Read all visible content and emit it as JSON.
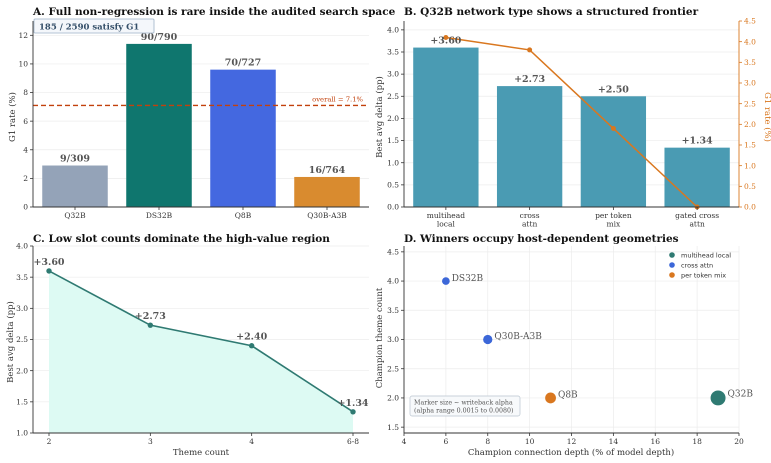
{
  "chart_data": [
    {
      "type": "bar",
      "title": "A. Full non-regression is rare inside the audited search space",
      "ylabel": "G1 rate (%)",
      "categories": [
        "Q32B",
        "DS32B",
        "Q8B",
        "Q30B-A3B"
      ],
      "values": [
        2.9,
        11.4,
        9.6,
        2.1
      ],
      "bar_labels": [
        "9/309",
        "90/790",
        "70/727",
        "16/764"
      ],
      "colors": [
        "#94a3b8",
        "#0f766e",
        "#4468e0",
        "#d98b2f"
      ],
      "ylim": [
        0,
        13
      ],
      "yticks": [
        "0",
        "2",
        "4",
        "6",
        "8",
        "10",
        "12"
      ],
      "reference_line": {
        "value": 7.1,
        "label": "overall = 7.1%",
        "color": "#c2410c"
      },
      "badge": "185 / 2590 satisfy G1"
    },
    {
      "type": "bar",
      "title": "B. Q32B network type shows a structured frontier",
      "ylabel": "Best avg delta (pp)",
      "y2label": "G1 rate (%)",
      "categories": [
        [
          "multihead",
          "local"
        ],
        [
          "cross",
          "attn"
        ],
        [
          "per token",
          "mix"
        ],
        [
          "gated cross",
          "attn"
        ]
      ],
      "values": [
        3.6,
        2.73,
        2.5,
        1.34
      ],
      "bar_labels": [
        "+3.60",
        "+2.73",
        "+2.50",
        "+1.34"
      ],
      "bar_color": "#4a9bb3",
      "ylim": [
        0,
        4.2
      ],
      "yticks": [
        "0.0",
        "0.5",
        "1.0",
        "1.5",
        "2.0",
        "2.5",
        "3.0",
        "3.5",
        "4.0"
      ],
      "series2": {
        "values": [
          4.1,
          3.8,
          1.9,
          0.0
        ],
        "color": "#d9771f"
      },
      "y2lim": [
        0,
        4.5
      ],
      "y2ticks": [
        "0.0",
        "0.5",
        "1.0",
        "1.5",
        "2.0",
        "2.5",
        "3.0",
        "3.5",
        "4.0",
        "4.5"
      ]
    },
    {
      "type": "area",
      "title": "C. Low slot counts dominate the high-value region",
      "xlabel": "Theme count",
      "ylabel": "Best avg delta (pp)",
      "categories": [
        "2",
        "3",
        "4",
        "6-8"
      ],
      "values": [
        3.6,
        2.73,
        2.4,
        1.34
      ],
      "point_labels": [
        "+3.60",
        "+2.73",
        "+2.40",
        "+1.34"
      ],
      "line_color": "#2f7a72",
      "fill_color": "#ddfaf3",
      "ylim": [
        1.0,
        4.0
      ],
      "yticks": [
        "1.0",
        "1.5",
        "2.0",
        "2.5",
        "3.0",
        "3.5",
        "4.0"
      ]
    },
    {
      "type": "scatter",
      "title": "D. Winners occupy host-dependent geometries",
      "xlabel": "Champion connection depth (% of model depth)",
      "ylabel": "Champion theme count",
      "xlim": [
        4,
        20
      ],
      "ylim": [
        1.4,
        4.6
      ],
      "xticks": [
        "4",
        "6",
        "8",
        "10",
        "12",
        "14",
        "16",
        "18",
        "20"
      ],
      "yticks": [
        "1.5",
        "2.0",
        "2.5",
        "3.0",
        "3.5",
        "4.0",
        "4.5"
      ],
      "points": [
        {
          "label": "DS32B",
          "x": 6,
          "y": 4.0,
          "type": "cross attn",
          "size": 0.4
        },
        {
          "label": "Q30B-A3B",
          "x": 8,
          "y": 3.0,
          "type": "cross attn",
          "size": 0.7
        },
        {
          "label": "Q8B",
          "x": 11,
          "y": 2.0,
          "type": "per token mix",
          "size": 1.0
        },
        {
          "label": "Q32B",
          "x": 19,
          "y": 2.0,
          "type": "multihead local",
          "size": 1.8
        }
      ],
      "legend": [
        {
          "label": "multihead local",
          "color": "#2f7a72"
        },
        {
          "label": "cross attn",
          "color": "#3c67d8"
        },
        {
          "label": "per token mix",
          "color": "#d9771f"
        }
      ],
      "legend_position": "top-right",
      "note": [
        "Marker size ~ writeback alpha",
        "(alpha range 0.0015 to 0.0080)"
      ]
    }
  ]
}
